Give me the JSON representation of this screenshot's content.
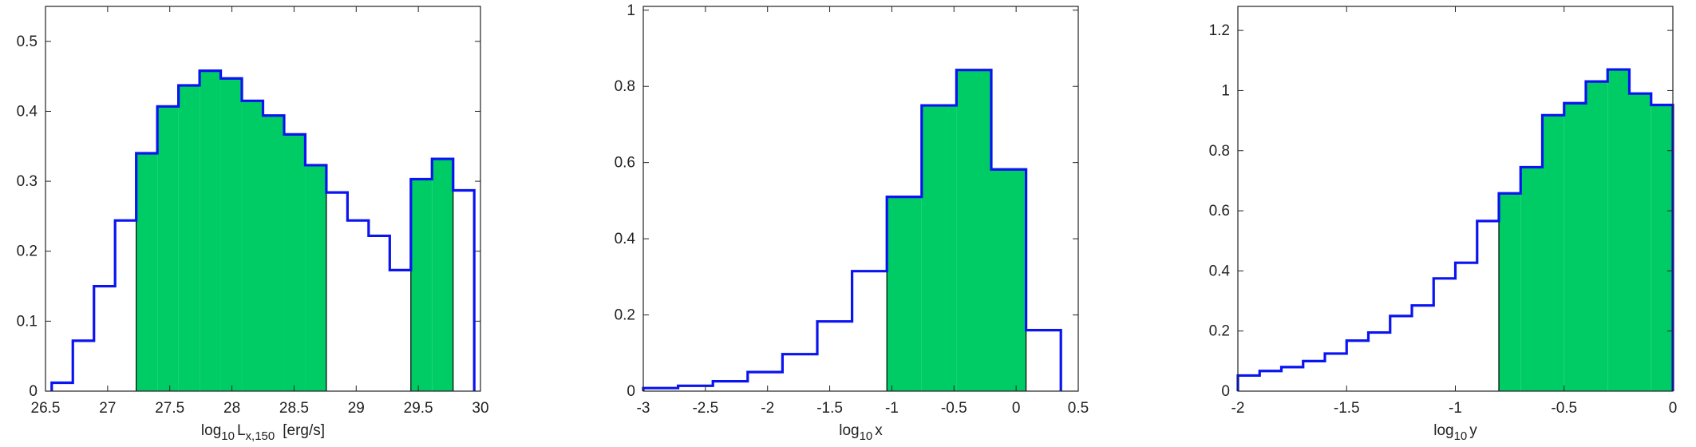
{
  "colors": {
    "outline": "#0a14f0",
    "fill": "#00cc66",
    "axis": "#222222"
  },
  "chart_data": [
    {
      "type": "histogram",
      "xlabel": {
        "pre": "log",
        "sub": "10",
        "main": "L",
        "main_sub": "x,150",
        "post": "[erg/s]"
      },
      "xlim": [
        26.5,
        30
      ],
      "ylim": [
        0,
        0.55
      ],
      "xticks": [
        "26.5",
        "27",
        "27.5",
        "28",
        "28.5",
        "29",
        "29.5",
        "30"
      ],
      "xtick_values": [
        26.5,
        27,
        27.5,
        28,
        28.5,
        29,
        29.5,
        30
      ],
      "yticks": [
        "0",
        "0.1",
        "0.2",
        "0.3",
        "0.4",
        "0.5"
      ],
      "ytick_values": [
        0,
        0.1,
        0.2,
        0.3,
        0.4,
        0.5
      ],
      "bins": [
        [
          26.55,
          26.72,
          0.012
        ],
        [
          26.72,
          26.89,
          0.072
        ],
        [
          26.89,
          27.06,
          0.15
        ],
        [
          27.06,
          27.23,
          0.244
        ],
        [
          27.23,
          27.4,
          0.34
        ],
        [
          27.4,
          27.57,
          0.407
        ],
        [
          27.57,
          27.74,
          0.437
        ],
        [
          27.74,
          27.91,
          0.458
        ],
        [
          27.91,
          28.08,
          0.447
        ],
        [
          28.08,
          28.25,
          0.415
        ],
        [
          28.25,
          28.42,
          0.394
        ],
        [
          28.42,
          28.59,
          0.367
        ],
        [
          28.59,
          28.76,
          0.323
        ],
        [
          28.76,
          28.93,
          0.284
        ],
        [
          28.93,
          29.1,
          0.244
        ],
        [
          29.1,
          29.27,
          0.222
        ],
        [
          29.27,
          29.44,
          0.173
        ],
        [
          29.44,
          29.61,
          0.303
        ],
        [
          29.61,
          29.78,
          0.332
        ],
        [
          29.78,
          29.95,
          0.287
        ]
      ],
      "shaded_ranges": [
        [
          27.23,
          28.76
        ],
        [
          29.44,
          29.78
        ]
      ]
    },
    {
      "type": "histogram",
      "xlabel": {
        "pre": "log",
        "sub": "10",
        "main": "x",
        "main_sub": "",
        "post": ""
      },
      "xlim": [
        -3,
        0.5
      ],
      "ylim": [
        0,
        1.01
      ],
      "xticks": [
        "-3",
        "-2.5",
        "-2",
        "-1.5",
        "-1",
        "-0.5",
        "0",
        "0.5"
      ],
      "xtick_values": [
        -3,
        -2.5,
        -2,
        -1.5,
        -1,
        -0.5,
        0,
        0.5
      ],
      "yticks": [
        "0",
        "0.2",
        "0.4",
        "0.6",
        "0.8",
        "1"
      ],
      "ytick_values": [
        0,
        0.2,
        0.4,
        0.6,
        0.8,
        1
      ],
      "bins": [
        [
          -3.0,
          -2.72,
          0.008
        ],
        [
          -2.72,
          -2.44,
          0.014
        ],
        [
          -2.44,
          -2.16,
          0.026
        ],
        [
          -2.16,
          -1.88,
          0.05
        ],
        [
          -1.88,
          -1.6,
          0.097
        ],
        [
          -1.6,
          -1.32,
          0.183
        ],
        [
          -1.32,
          -1.04,
          0.315
        ],
        [
          -1.04,
          -0.76,
          0.51
        ],
        [
          -0.76,
          -0.48,
          0.75
        ],
        [
          -0.48,
          -0.2,
          0.843
        ],
        [
          -0.2,
          0.08,
          0.582
        ],
        [
          0.08,
          0.36,
          0.16
        ]
      ],
      "shaded_ranges": [
        [
          -1.04,
          0.08
        ]
      ]
    },
    {
      "type": "histogram",
      "xlabel": {
        "pre": "log",
        "sub": "10",
        "main": "y",
        "main_sub": "",
        "post": ""
      },
      "xlim": [
        -2,
        0
      ],
      "ylim": [
        0,
        1.28
      ],
      "xticks": [
        "-2",
        "-1.5",
        "-1",
        "-0.5",
        "0"
      ],
      "xtick_values": [
        -2,
        -1.5,
        -1,
        -0.5,
        0
      ],
      "yticks": [
        "0",
        "0.2",
        "0.4",
        "0.6",
        "0.8",
        "1",
        "1.2"
      ],
      "ytick_values": [
        0,
        0.2,
        0.4,
        0.6,
        0.8,
        1,
        1.2
      ],
      "bins": [
        [
          -2.0,
          -1.9,
          0.052
        ],
        [
          -1.9,
          -1.8,
          0.067
        ],
        [
          -1.8,
          -1.7,
          0.08
        ],
        [
          -1.7,
          -1.6,
          0.1
        ],
        [
          -1.6,
          -1.5,
          0.125
        ],
        [
          -1.5,
          -1.4,
          0.168
        ],
        [
          -1.4,
          -1.3,
          0.195
        ],
        [
          -1.3,
          -1.2,
          0.25
        ],
        [
          -1.2,
          -1.1,
          0.285
        ],
        [
          -1.1,
          -1.0,
          0.375
        ],
        [
          -1.0,
          -0.9,
          0.427
        ],
        [
          -0.9,
          -0.8,
          0.566
        ],
        [
          -0.8,
          -0.7,
          0.658
        ],
        [
          -0.7,
          -0.6,
          0.745
        ],
        [
          -0.6,
          -0.5,
          0.918
        ],
        [
          -0.5,
          -0.4,
          0.958
        ],
        [
          -0.4,
          -0.3,
          1.03
        ],
        [
          -0.3,
          -0.2,
          1.07
        ],
        [
          -0.2,
          -0.1,
          0.99
        ],
        [
          -0.1,
          0.0,
          0.952
        ]
      ],
      "shaded_ranges": [
        [
          -0.8,
          0.0
        ]
      ]
    }
  ]
}
